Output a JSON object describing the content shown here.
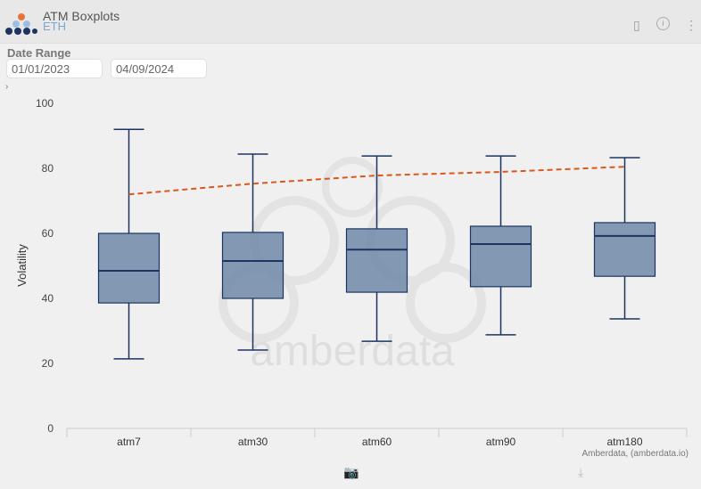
{
  "header": {
    "title": "ATM Boxplots",
    "subtitle": "ETH"
  },
  "date_range": {
    "label": "Date Range",
    "start": "01/01/2023",
    "end": "04/09/2024"
  },
  "icons": [
    "logo-icon",
    "bookmark-icon",
    "info-icon",
    "more-vertical-icon",
    "camera-icon",
    "download-icon",
    "chevron-right-icon"
  ],
  "credit": "Amberdata, (amberdata.io)",
  "watermark": "amberdata",
  "colors": {
    "box_fill": "#7089a8",
    "box_stroke": "#1d3461",
    "dashed_line": "#d9581e"
  },
  "chart_data": {
    "type": "box",
    "ylabel": "Volatility",
    "xlabel": "",
    "ylim": [
      0,
      100
    ],
    "yticks": [
      0,
      20,
      40,
      60,
      80,
      100
    ],
    "categories": [
      "atm7",
      "atm30",
      "atm60",
      "atm90",
      "atm180"
    ],
    "boxes": [
      {
        "min": 21.4,
        "q1": 38.6,
        "median": 48.5,
        "q3": 60.0,
        "max": 92.0
      },
      {
        "min": 24.1,
        "q1": 40.0,
        "median": 51.5,
        "q3": 60.3,
        "max": 84.4
      },
      {
        "min": 26.8,
        "q1": 41.9,
        "median": 55.0,
        "q3": 61.4,
        "max": 83.8
      },
      {
        "min": 28.8,
        "q1": 43.6,
        "median": 56.7,
        "q3": 62.2,
        "max": 83.8
      },
      {
        "min": 33.7,
        "q1": 46.8,
        "median": 59.2,
        "q3": 63.3,
        "max": 83.3
      }
    ],
    "line": {
      "style": "dashed",
      "values": [
        72.0,
        75.3,
        77.8,
        78.9,
        80.5
      ]
    },
    "grid": false
  }
}
